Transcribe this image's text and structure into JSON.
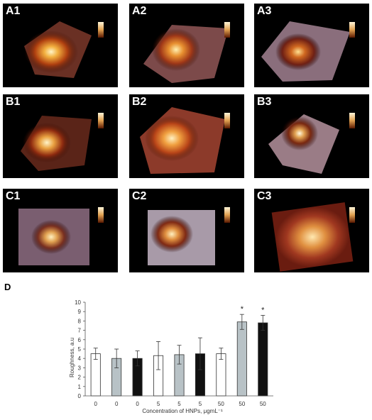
{
  "panels": [
    {
      "id": "A1",
      "label": "A1"
    },
    {
      "id": "A2",
      "label": "A2"
    },
    {
      "id": "A3",
      "label": "A3"
    },
    {
      "id": "B1",
      "label": "B1"
    },
    {
      "id": "B2",
      "label": "B2"
    },
    {
      "id": "B3",
      "label": "B3"
    },
    {
      "id": "C1",
      "label": "C1"
    },
    {
      "id": "C2",
      "label": "C2"
    },
    {
      "id": "C3",
      "label": "C3"
    }
  ],
  "panel_d_label": "D",
  "chart_data": {
    "type": "bar",
    "categories": [
      "0",
      "0",
      "0",
      "5",
      "5",
      "5",
      "50",
      "50",
      "50"
    ],
    "values": [
      4.5,
      4.0,
      4.0,
      4.3,
      4.4,
      4.5,
      4.5,
      7.9,
      7.8
    ],
    "errors": [
      0.6,
      1.0,
      0.8,
      1.5,
      1.0,
      1.7,
      0.6,
      0.8,
      0.8
    ],
    "bar_fills": [
      "white",
      "lightgray",
      "black",
      "white",
      "lightgray",
      "black",
      "white",
      "lightgray",
      "black"
    ],
    "significance": [
      "",
      "",
      "",
      "",
      "",
      "",
      "",
      "*",
      "*"
    ],
    "xlabel": "Concentration of HNPs, μgmL⁻¹",
    "ylabel": "Roughness, a.u",
    "ylim": [
      0,
      10
    ],
    "yticks": [
      "0",
      "1",
      "2",
      "3",
      "4",
      "5",
      "6",
      "7",
      "8",
      "9",
      "10"
    ],
    "grid": false,
    "colors": {
      "white": "#ffffff",
      "lightgray": "#b8c2c6",
      "black": "#111111",
      "stroke": "#333333"
    }
  }
}
